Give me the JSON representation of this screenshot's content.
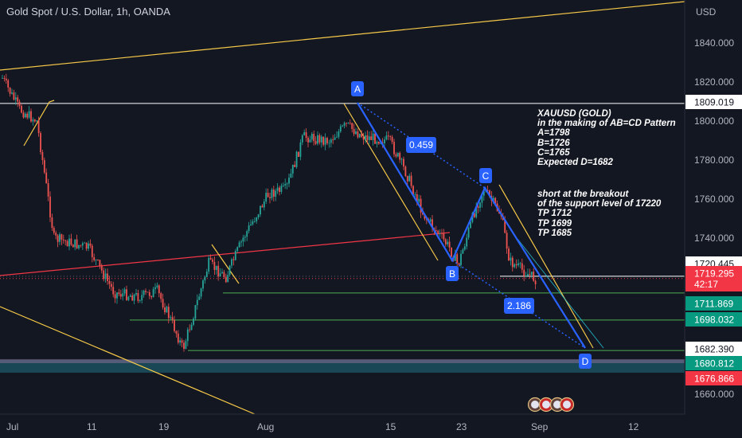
{
  "header": {
    "title": "Gold Spot / U.S. Dollar, 1h, OANDA"
  },
  "notes": {
    "pattern": [
      "XAUUSD (GOLD)",
      "in the making of AB=CD Pattern",
      "A=1798",
      "B=1726",
      "C=1765",
      "Expected D=1682"
    ],
    "trade": [
      "short at the breakout",
      "of the support level of 17220",
      "TP 1712",
      "TP 1699",
      "TP 1685"
    ]
  },
  "chart_data": {
    "type": "candlestick",
    "currency_label": "USD",
    "y_ticks": [
      "1840.000",
      "1820.000",
      "1800.000",
      "1780.000",
      "1760.000",
      "1740.000",
      "1660.000"
    ],
    "x_ticks": [
      "Jul",
      "11",
      "19",
      "Aug",
      "15",
      "23",
      "Sep",
      "12"
    ],
    "price_path": [
      {
        "date": "Jul 1",
        "price": 1822
      },
      {
        "date": "Jul 3",
        "price": 1806
      },
      {
        "date": "Jul 5",
        "price": 1800
      },
      {
        "date": "Jul 7",
        "price": 1740
      },
      {
        "date": "Jul 11",
        "price": 1735
      },
      {
        "date": "Jul 14",
        "price": 1712
      },
      {
        "date": "Jul 17",
        "price": 1710
      },
      {
        "date": "Jul 19",
        "price": 1713
      },
      {
        "date": "Jul 21",
        "price": 1694
      },
      {
        "date": "Jul 22",
        "price": 1683
      },
      {
        "date": "Jul 25",
        "price": 1727
      },
      {
        "date": "Jul 27",
        "price": 1720
      },
      {
        "date": "Jul 29",
        "price": 1740
      },
      {
        "date": "Aug 1",
        "price": 1763
      },
      {
        "date": "Aug 3",
        "price": 1765
      },
      {
        "date": "Aug 5",
        "price": 1792
      },
      {
        "date": "Aug 8",
        "price": 1790
      },
      {
        "date": "Aug 10",
        "price": 1798
      },
      {
        "date": "Aug 12",
        "price": 1792
      },
      {
        "date": "Aug 15",
        "price": 1790
      },
      {
        "date": "Aug 17",
        "price": 1773
      },
      {
        "date": "Aug 19",
        "price": 1752
      },
      {
        "date": "Aug 22",
        "price": 1735
      },
      {
        "date": "Aug 23",
        "price": 1726
      },
      {
        "date": "Aug 25",
        "price": 1755
      },
      {
        "date": "Aug 26",
        "price": 1765
      },
      {
        "date": "Aug 28",
        "price": 1752
      },
      {
        "date": "Aug 29",
        "price": 1728
      },
      {
        "date": "Aug 31",
        "price": 1722
      },
      {
        "date": "Sep 1",
        "price": 1719
      }
    ],
    "price_labels": [
      {
        "value": 1809.019,
        "text": "1809.019",
        "bg": "#ffffff",
        "fg": "#131722"
      },
      {
        "value": 1720.445,
        "text": "1720.445",
        "bg": "#ffffff",
        "fg": "#131722"
      },
      {
        "value": 1719.295,
        "text": "1719.295",
        "sub": "42:17",
        "bg": "#f23645",
        "fg": "#ffffff"
      },
      {
        "value": 1711.869,
        "text": "1711.869",
        "bg": "#089981",
        "fg": "#ffffff"
      },
      {
        "value": 1698.032,
        "text": "1698.032",
        "bg": "#089981",
        "fg": "#ffffff"
      },
      {
        "value": 1682.39,
        "text": "1682.390",
        "bg": "#ffffff",
        "fg": "#131722"
      },
      {
        "value": 1680.812,
        "text": "1680.812",
        "bg": "#089981",
        "fg": "#ffffff"
      },
      {
        "value": 1676.866,
        "text": "1676.866",
        "bg": "#f23645",
        "fg": "#ffffff"
      }
    ],
    "pattern_points": [
      {
        "label": "A",
        "date": "Aug 10",
        "price": 1798
      },
      {
        "label": "B",
        "date": "Aug 23",
        "price": 1726
      },
      {
        "label": "C",
        "date": "Aug 26",
        "price": 1765
      },
      {
        "label": "D",
        "date": "Sep 6",
        "price": 1682
      }
    ],
    "ratios": [
      "0.459",
      "2.186"
    ],
    "horizontal_levels": [
      {
        "value": 1809.019,
        "color": "#ffffff"
      },
      {
        "value": 1711.869,
        "color": "#4caf50"
      },
      {
        "value": 1698.032,
        "color": "#4caf50"
      },
      {
        "value": 1682.39,
        "color": "#4caf50"
      }
    ],
    "colors": {
      "up": "#26a69a",
      "down": "#ef5350",
      "pattern": "#2962ff",
      "trend": "#f7c948",
      "support": "#f23645"
    },
    "grid": false
  }
}
